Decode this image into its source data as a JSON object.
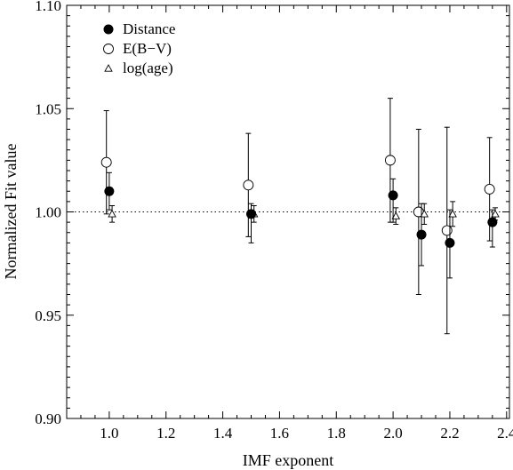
{
  "chart_data": {
    "type": "scatter",
    "title": "",
    "xlabel": "IMF exponent",
    "ylabel": "Normalized Fit value",
    "xlim": [
      0.85,
      2.41
    ],
    "ylim": [
      0.9,
      1.1
    ],
    "x_ticks": [
      "1.0",
      "1.2",
      "1.4",
      "1.6",
      "1.8",
      "2.0",
      "2.2",
      "2.4"
    ],
    "y_ticks": [
      "0.90",
      "0.95",
      "1.00",
      "1.05",
      "1.10"
    ],
    "reference_line": {
      "y": 1.0,
      "style": "dotted"
    },
    "legend_position": "top-left",
    "series": [
      {
        "name": "Distance",
        "marker": "filled-circle",
        "points": [
          {
            "x": 1.0,
            "y": 1.01,
            "err_low": 0.009,
            "err_high": 0.009
          },
          {
            "x": 1.5,
            "y": 0.999,
            "err_low": 0.014,
            "err_high": 0.005
          },
          {
            "x": 2.0,
            "y": 1.008,
            "err_low": 0.013,
            "err_high": 0.008
          },
          {
            "x": 2.1,
            "y": 0.989,
            "err_low": 0.015,
            "err_high": 0.015
          },
          {
            "x": 2.2,
            "y": 0.985,
            "err_low": 0.017,
            "err_high": 0.016
          },
          {
            "x": 2.35,
            "y": 0.995,
            "err_low": 0.012,
            "err_high": 0.006
          }
        ]
      },
      {
        "name": "E(B−V)",
        "marker": "open-circle",
        "points": [
          {
            "x": 0.99,
            "y": 1.024,
            "err_low": 0.025,
            "err_high": 0.025
          },
          {
            "x": 1.49,
            "y": 1.013,
            "err_low": 0.025,
            "err_high": 0.025
          },
          {
            "x": 1.99,
            "y": 1.025,
            "err_low": 0.03,
            "err_high": 0.03
          },
          {
            "x": 2.09,
            "y": 1.0,
            "err_low": 0.04,
            "err_high": 0.04
          },
          {
            "x": 2.19,
            "y": 0.991,
            "err_low": 0.05,
            "err_high": 0.05
          },
          {
            "x": 2.34,
            "y": 1.011,
            "err_low": 0.025,
            "err_high": 0.025
          }
        ]
      },
      {
        "name": "log(age)",
        "marker": "open-triangle",
        "points": [
          {
            "x": 1.01,
            "y": 0.999,
            "err_low": 0.004,
            "err_high": 0.004
          },
          {
            "x": 1.51,
            "y": 0.999,
            "err_low": 0.004,
            "err_high": 0.004
          },
          {
            "x": 2.01,
            "y": 0.998,
            "err_low": 0.004,
            "err_high": 0.004
          },
          {
            "x": 2.11,
            "y": 0.999,
            "err_low": 0.005,
            "err_high": 0.005
          },
          {
            "x": 2.21,
            "y": 0.999,
            "err_low": 0.006,
            "err_high": 0.006
          },
          {
            "x": 2.36,
            "y": 0.999,
            "err_low": 0.003,
            "err_high": 0.003
          }
        ]
      }
    ]
  }
}
